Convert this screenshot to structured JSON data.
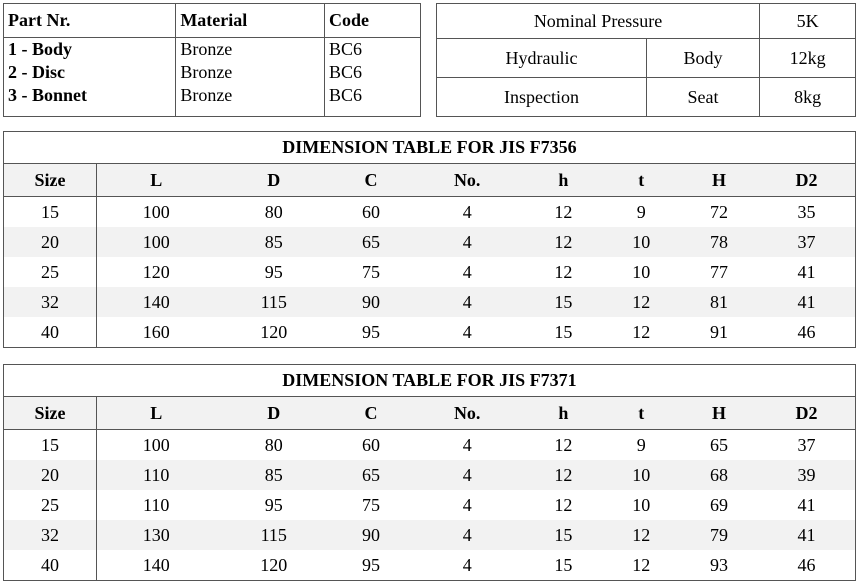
{
  "parts": {
    "header": [
      "Part Nr.",
      "Material",
      "Code"
    ],
    "rows": [
      [
        "1 - Body",
        "Bronze",
        "BC6"
      ],
      [
        "2 - Disc",
        "Bronze",
        "BC6"
      ],
      [
        "3 - Bonnet",
        "Bronze",
        "BC6"
      ]
    ]
  },
  "pressure": {
    "title": "Nominal Pressure",
    "title_value": "5K",
    "rows": [
      [
        "Hydraulic",
        "Body",
        "12kg"
      ],
      [
        "Inspection",
        "Seat",
        "8kg"
      ]
    ]
  },
  "tables": [
    {
      "title": "DIMENSION TABLE FOR JIS F7356",
      "header": [
        "Size",
        "L",
        "D",
        "C",
        "No.",
        "h",
        "t",
        "H",
        "D2"
      ],
      "rows": [
        [
          15,
          100,
          80,
          60,
          4,
          12,
          9,
          72,
          35
        ],
        [
          20,
          100,
          85,
          65,
          4,
          12,
          10,
          78,
          37
        ],
        [
          25,
          120,
          95,
          75,
          4,
          12,
          10,
          77,
          41
        ],
        [
          32,
          140,
          115,
          90,
          4,
          15,
          12,
          81,
          41
        ],
        [
          40,
          160,
          120,
          95,
          4,
          15,
          12,
          91,
          46
        ]
      ]
    },
    {
      "title": "DIMENSION TABLE FOR JIS F7371",
      "header": [
        "Size",
        "L",
        "D",
        "C",
        "No.",
        "h",
        "t",
        "H",
        "D2"
      ],
      "rows": [
        [
          15,
          100,
          80,
          60,
          4,
          12,
          9,
          65,
          37
        ],
        [
          20,
          110,
          85,
          65,
          4,
          12,
          10,
          68,
          39
        ],
        [
          25,
          110,
          95,
          75,
          4,
          12,
          10,
          69,
          41
        ],
        [
          32,
          130,
          115,
          90,
          4,
          15,
          12,
          79,
          41
        ],
        [
          40,
          140,
          120,
          95,
          4,
          15,
          12,
          93,
          46
        ]
      ]
    }
  ]
}
